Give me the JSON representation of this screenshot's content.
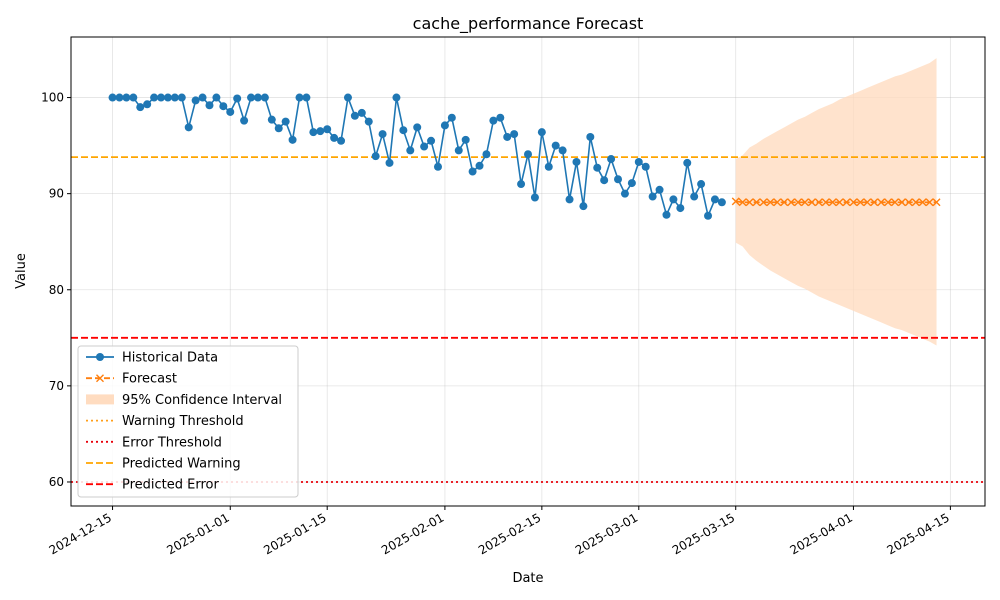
{
  "chart_data": {
    "type": "line",
    "title": "cache_performance Forecast",
    "xlabel": "Date",
    "ylabel": "Value",
    "xlim": [
      "2024-12-09",
      "2025-04-20"
    ],
    "ylim": [
      57.5,
      106.3
    ],
    "grid": true,
    "legend_position": "lower-left",
    "x_ticks": [
      "2024-12-15",
      "2025-01-01",
      "2025-01-15",
      "2025-02-01",
      "2025-02-15",
      "2025-03-01",
      "2025-03-15",
      "2025-04-01",
      "2025-04-15"
    ],
    "y_ticks": [
      60,
      70,
      80,
      90,
      100
    ],
    "series": [
      {
        "name": "Historical Data",
        "color": "#1f77b4",
        "style": "solid-circle-markers",
        "start_date": "2024-12-15",
        "values": [
          100,
          100,
          100,
          100,
          99.0,
          99.3,
          100,
          100,
          100,
          100,
          100,
          96.9,
          99.7,
          100,
          99.2,
          100,
          99.1,
          98.5,
          99.9,
          97.6,
          100,
          100,
          100,
          97.7,
          96.8,
          97.5,
          95.6,
          100,
          100,
          96.4,
          96.5,
          96.7,
          95.8,
          95.5,
          100,
          98.1,
          98.4,
          97.5,
          93.9,
          96.2,
          93.2,
          100,
          96.6,
          94.5,
          96.9,
          94.9,
          95.5,
          92.8,
          97.1,
          97.9,
          94.5,
          95.6,
          92.3,
          92.9,
          94.1,
          97.6,
          97.9,
          95.9,
          96.2,
          91.0,
          94.1,
          89.6,
          96.4,
          92.8,
          95.0,
          94.5,
          89.4,
          93.3,
          88.7,
          95.9,
          92.7,
          91.4,
          93.6,
          91.5,
          90.0,
          91.1,
          93.3,
          92.8,
          89.7,
          90.4,
          87.8,
          89.4,
          88.5,
          93.2,
          89.7,
          91.0,
          87.7,
          89.4,
          89.1
        ]
      },
      {
        "name": "Forecast",
        "color": "#ff7f0e",
        "style": "dashed-x-markers",
        "start_date": "2025-03-15",
        "values": [
          89.2,
          89.1,
          89.1,
          89.1,
          89.1,
          89.1,
          89.1,
          89.1,
          89.1,
          89.1,
          89.1,
          89.1,
          89.1,
          89.1,
          89.1,
          89.1,
          89.1,
          89.1,
          89.1,
          89.1,
          89.1,
          89.1,
          89.1,
          89.1,
          89.1,
          89.1,
          89.1,
          89.1,
          89.1,
          89.1
        ]
      }
    ],
    "confidence_interval": {
      "name": "95% Confidence Interval",
      "color": "#ffdcc0",
      "start_date": "2025-03-15",
      "upper": [
        93.6,
        94.0,
        94.8,
        95.2,
        95.7,
        96.1,
        96.5,
        96.9,
        97.3,
        97.7,
        98.0,
        98.4,
        98.8,
        99.1,
        99.4,
        99.8,
        100.1,
        100.4,
        100.7,
        101.0,
        101.3,
        101.6,
        101.9,
        102.2,
        102.4,
        102.7,
        103.0,
        103.3,
        103.6,
        104.1
      ],
      "lower": [
        84.9,
        84.5,
        83.6,
        83.0,
        82.5,
        82.0,
        81.6,
        81.2,
        80.8,
        80.4,
        80.1,
        79.7,
        79.3,
        79.0,
        78.7,
        78.4,
        78.1,
        77.8,
        77.5,
        77.2,
        76.9,
        76.6,
        76.3,
        76.0,
        75.8,
        75.5,
        75.2,
        74.9,
        74.6,
        74.2
      ]
    },
    "thresholds": [
      {
        "name": "Warning Threshold",
        "color": "#ff9f1a",
        "style": "dotted",
        "value": null
      },
      {
        "name": "Error Threshold",
        "color": "#e8000b",
        "style": "dotted",
        "value": 60
      },
      {
        "name": "Predicted Warning",
        "color": "#ffa500",
        "style": "dashed",
        "value": 93.8
      },
      {
        "name": "Predicted Error",
        "color": "#ff0000",
        "style": "dashed",
        "value": 75
      }
    ],
    "legend": [
      "Historical Data",
      "Forecast",
      "95% Confidence Interval",
      "Warning Threshold",
      "Error Threshold",
      "Predicted Warning",
      "Predicted Error"
    ]
  }
}
